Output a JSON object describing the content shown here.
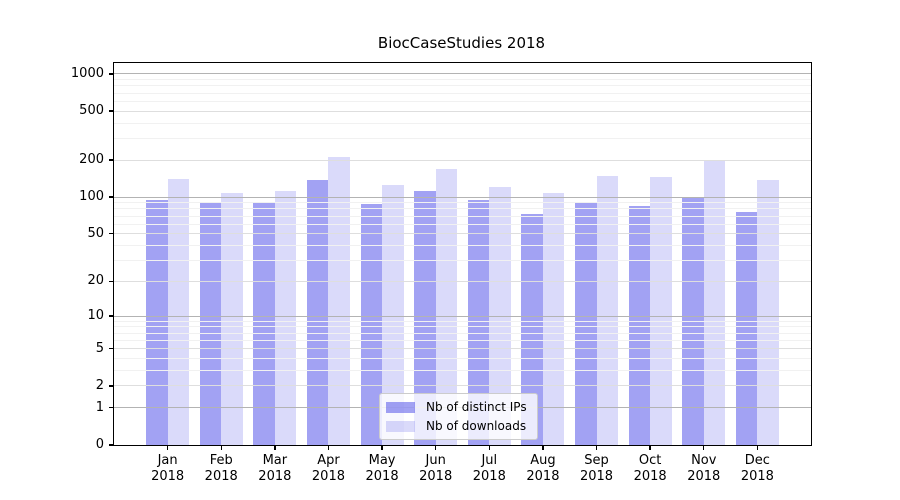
{
  "title": "BiocCaseStudies 2018",
  "chart_data": {
    "type": "bar",
    "title": "BiocCaseStudies 2018",
    "categories": [
      "Jan",
      "Feb",
      "Mar",
      "Apr",
      "May",
      "Jun",
      "Jul",
      "Aug",
      "Sep",
      "Oct",
      "Nov",
      "Dec"
    ],
    "x_year_label": "2018",
    "series": [
      {
        "name": "Nb of distinct IPs",
        "color": "rgba(60,60,230,0.48)",
        "color_on_white": "#a1a1f3",
        "values": [
          95,
          91,
          90,
          139,
          87,
          112,
          94,
          73,
          90,
          84,
          98,
          75
        ]
      },
      {
        "name": "Nb of downloads",
        "color": "rgba(60,60,230,0.19)",
        "color_on_white": "#dadafa",
        "values": [
          141,
          107,
          113,
          214,
          125,
          170,
          122,
          107,
          148,
          147,
          200,
          138
        ]
      }
    ],
    "y_axis": {
      "scale": "log10(value + 1)",
      "tick_labels": [
        "1000",
        "500",
        "200",
        "100",
        "50",
        "20",
        "10",
        "5",
        "2",
        "1",
        "0"
      ],
      "tick_values": [
        1000,
        500,
        200,
        100,
        50,
        20,
        10,
        5,
        2,
        1,
        0
      ],
      "major_gridlines": [
        1,
        10,
        100,
        1000
      ],
      "labeled_minor_gridlines": [
        2,
        5,
        20,
        50,
        200,
        500
      ],
      "faint_minor_multiples": [
        3,
        4,
        6,
        7,
        8,
        9
      ],
      "max_value": 1225
    },
    "grid": true,
    "legend_position": "lower-center-right",
    "colors": {
      "grid_major": "#b3b3b3",
      "grid_labeled": "#dedede",
      "grid_faint": "#f1f1f1",
      "axis": "#000000",
      "background": "#ffffff"
    }
  },
  "legend": {
    "items": [
      "Nb of distinct IPs",
      "Nb of downloads"
    ]
  }
}
